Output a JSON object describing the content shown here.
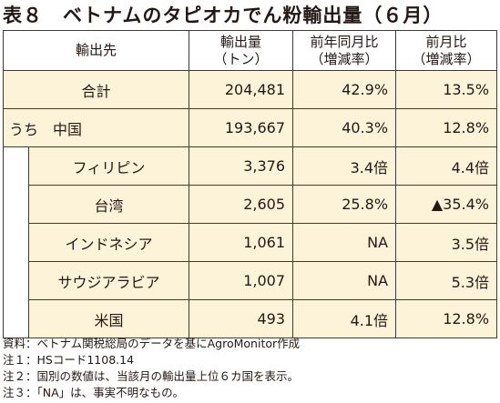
{
  "title": "表８　ベトナムのタピオカでん粉輸出量（６月）",
  "header": {
    "origin": "輸出先",
    "volume_line1": "輸出量",
    "volume_line2": "（トン）",
    "yoy_line1": "前年同月比",
    "yoy_line2": "（増減率）",
    "mom_line1": "前月比",
    "mom_line2": "（増減率）"
  },
  "rows": [
    {
      "name": "合計",
      "volume": "204,481",
      "yoy": "42.9%",
      "mom": "13.5%"
    },
    {
      "name": "うち　中国",
      "volume": "193,667",
      "yoy": "40.3%",
      "mom": "12.8%"
    },
    {
      "name": "フィリピン",
      "volume": "3,376",
      "yoy": "3.4倍",
      "mom": "4.4倍"
    },
    {
      "name": "台湾",
      "volume": "2,605",
      "yoy": "25.8%",
      "mom": "▲35.4%"
    },
    {
      "name": "インドネシア",
      "volume": "1,061",
      "yoy": "NA",
      "mom": "3.5倍"
    },
    {
      "name": "サウジアラビア",
      "volume": "1,007",
      "yoy": "NA",
      "mom": "5.3倍"
    },
    {
      "name": "米国",
      "volume": "493",
      "yoy": "4.1倍",
      "mom": "12.8%"
    }
  ],
  "notes": [
    "資料：ベトナム関税総局のデータを基にAgroMonitor作成",
    "注１：HSコード1108.14",
    "注２：国別の数値は、当該月の輸出量上位６カ国を表示。",
    "注３：「NA」は、事実不明なもの。"
  ]
}
